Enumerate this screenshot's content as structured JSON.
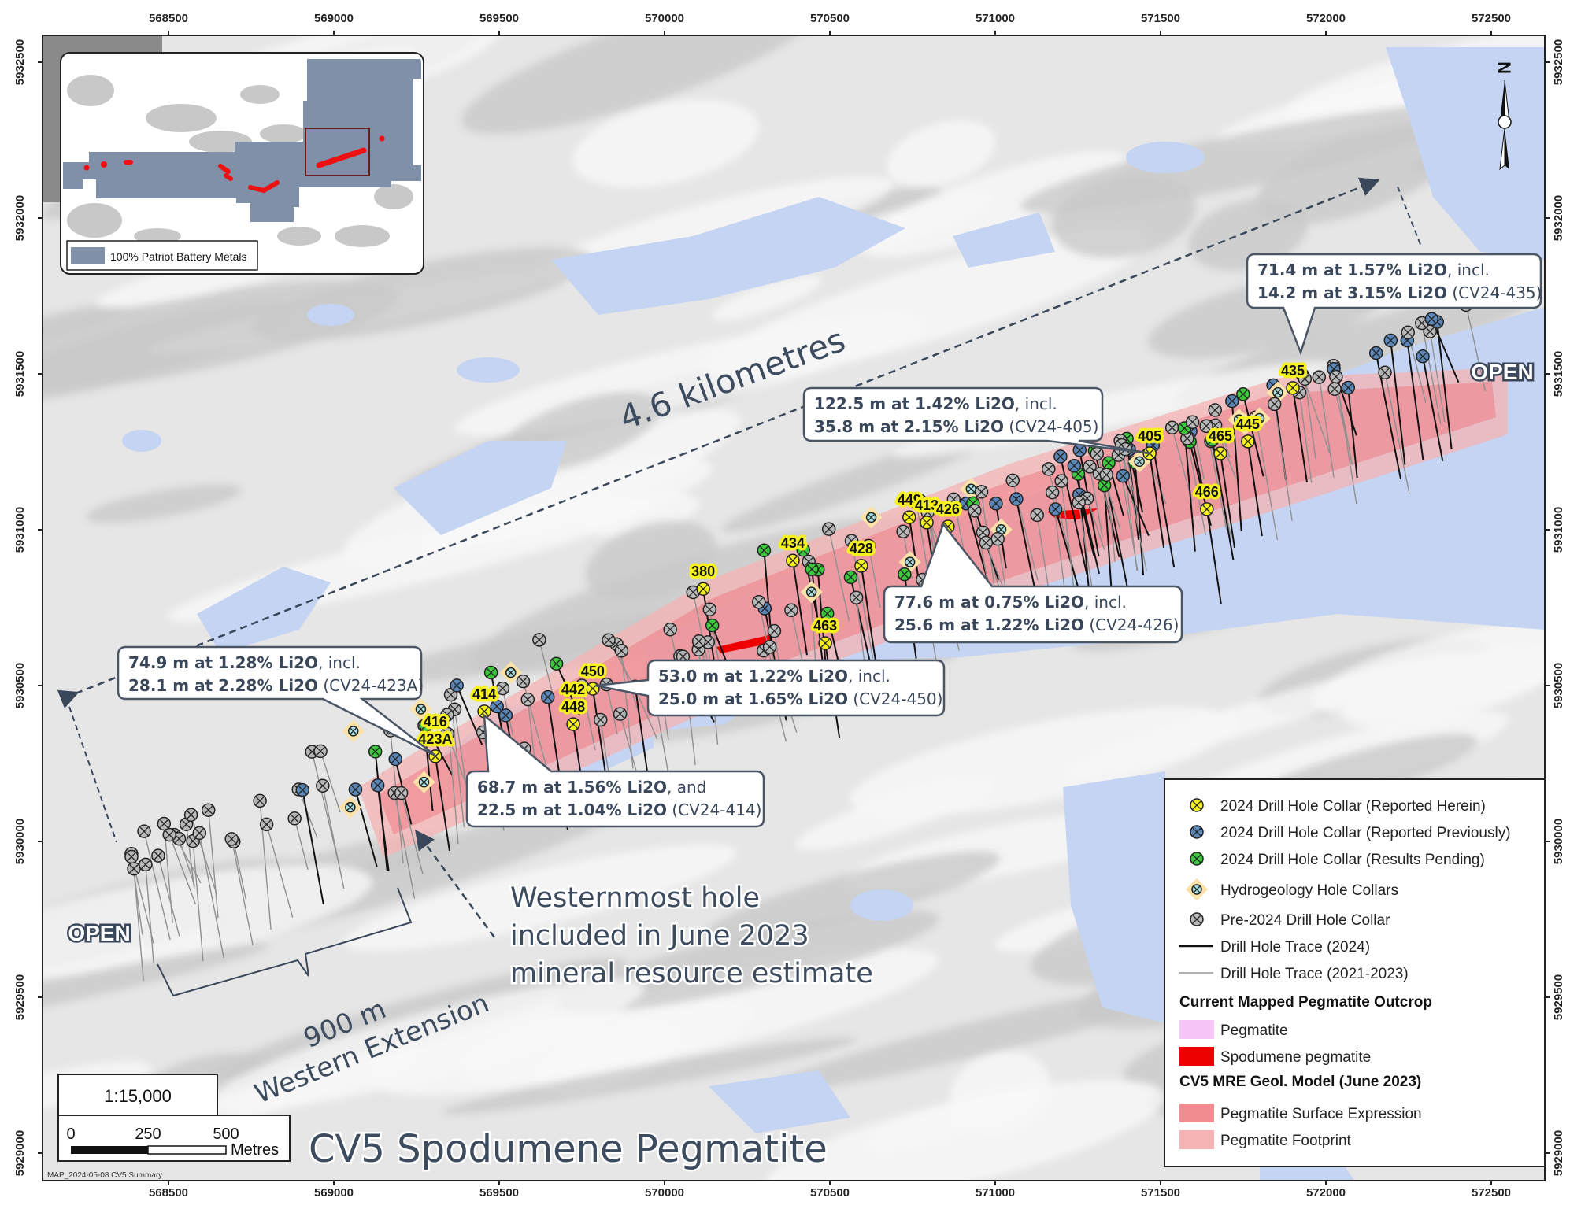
{
  "map": {
    "title": "CV5 Spodumene Pegmatite",
    "distance_label": "4.6 kilometres",
    "open_labels": [
      "OPEN",
      "OPEN"
    ],
    "western_extension": {
      "line1": "900 m",
      "line2": "Western Extension"
    },
    "westernmost_note": [
      "Westernmost hole",
      "included in June 2023",
      "mineral resource estimate"
    ],
    "map_id": "MAP_2024-05-08 CV5 Summary",
    "colors": {
      "lake": "#c4d4f2",
      "terrain": "#e6e6e6",
      "pegmatite_footprint": "#f3a9ad",
      "pegmatite_surface": "#ee8088",
      "spodumene": "#ff0000",
      "callout_text": "#3a475a"
    }
  },
  "axes": {
    "easting": [
      "568500",
      "569000",
      "569500",
      "570000",
      "570500",
      "571000",
      "571500",
      "572000",
      "572500"
    ],
    "northing": [
      "5932500",
      "5932000",
      "5931500",
      "5931000",
      "5930500",
      "5930000",
      "5929500",
      "5929000"
    ]
  },
  "scale": {
    "ratio": "1:15,000",
    "ticks": [
      "0",
      "250",
      "500"
    ],
    "unit": "Metres"
  },
  "inset": {
    "legend_label": "100% Patriot Battery Metals",
    "property_color": "#8090a8"
  },
  "callouts": [
    {
      "lines": [
        {
          "bold": "71.4 m at 1.57% Li2O",
          "rest": ", incl."
        },
        {
          "bold": "14.2 m at 3.15% Li2O",
          "rest": " (CV24-435)"
        }
      ]
    },
    {
      "lines": [
        {
          "bold": "122.5 m at 1.42% Li2O",
          "rest": ", incl."
        },
        {
          "bold": "35.8 m at 2.15% Li2O",
          "rest": " (CV24-405)"
        }
      ]
    },
    {
      "lines": [
        {
          "bold": "77.6 m at 0.75% Li2O",
          "rest": ", incl."
        },
        {
          "bold": "25.6 m at 1.22% Li2O",
          "rest": " (CV24-426)"
        }
      ]
    },
    {
      "lines": [
        {
          "bold": "53.0 m at 1.22% Li2O",
          "rest": ", incl."
        },
        {
          "bold": "25.0 m at 1.65% Li2O",
          "rest": " (CV24-450)"
        }
      ]
    },
    {
      "lines": [
        {
          "bold": "74.9 m at 1.28% Li2O",
          "rest": ", incl."
        },
        {
          "bold": "28.1 m at 2.28% Li2O",
          "rest": " (CV24-423A)"
        }
      ]
    },
    {
      "lines": [
        {
          "bold": "68.7 m at 1.56% Li2O",
          "rest": ", and"
        },
        {
          "bold": "22.5 m at 1.04% Li2O",
          "rest": " (CV24-414)"
        }
      ]
    }
  ],
  "reported_holes": [
    {
      "labels": [
        "435"
      ],
      "easting": 571900,
      "northing": 5931455
    },
    {
      "labels": [
        "405"
      ],
      "easting": 571467,
      "northing": 5931245
    },
    {
      "labels": [
        "465"
      ],
      "easting": 571681,
      "northing": 5931245
    },
    {
      "labels": [
        "445"
      ],
      "easting": 571764,
      "northing": 5931283
    },
    {
      "labels": [
        "466"
      ],
      "easting": 571640,
      "northing": 5931066
    },
    {
      "labels": [
        "449"
      ],
      "easting": 570740,
      "northing": 5931040
    },
    {
      "labels": [
        "413"
      ],
      "easting": 570793,
      "northing": 5931023
    },
    {
      "labels": [
        "426"
      ],
      "easting": 570857,
      "northing": 5931010
    },
    {
      "labels": [
        "434"
      ],
      "easting": 570388,
      "northing": 5930901
    },
    {
      "labels": [
        "428"
      ],
      "easting": 570595,
      "northing": 5930884
    },
    {
      "labels": [
        "380"
      ],
      "easting": 570117,
      "northing": 5930810
    },
    {
      "labels": [
        "463"
      ],
      "easting": 570486,
      "northing": 5930636
    },
    {
      "labels": [
        "450"
      ],
      "easting": 569783,
      "northing": 5930490
    },
    {
      "labels": [
        "442",
        "448"
      ],
      "easting": 569724,
      "northing": 5930376
    },
    {
      "labels": [
        "414"
      ],
      "easting": 569455,
      "northing": 5930417
    },
    {
      "labels": [
        "416",
        "423A"
      ],
      "easting": 569307,
      "northing": 5930273
    }
  ],
  "legend": {
    "items": [
      {
        "symbol": "collar-yellow",
        "label": "2024 Drill Hole Collar (Reported Herein)",
        "color": "#f5f01e"
      },
      {
        "symbol": "collar-blue",
        "label": "2024 Drill Hole Collar (Reported Previously)",
        "color": "#5a86b8"
      },
      {
        "symbol": "collar-green",
        "label": "2024 Drill Hole Collar (Results Pending)",
        "color": "#3cc83c"
      },
      {
        "symbol": "collar-hydro",
        "label": "Hydrogeology Hole Collars",
        "color": "#a8e0e0"
      },
      {
        "symbol": "collar-gray",
        "label": "Pre-2024 Drill Hole Collar",
        "color": "#b8b8b8"
      },
      {
        "symbol": "line-black",
        "label": "Drill Hole Trace (2024)",
        "color": "#111111"
      },
      {
        "symbol": "line-gray",
        "label": "Drill Hole Trace (2021-2023)",
        "color": "#999999"
      }
    ],
    "heading1": "Current Mapped Pegmatite Outcrop",
    "outcrop": [
      {
        "label": "Pegmatite",
        "color": "#f7c4f7"
      },
      {
        "label": "Spodumene pegmatite",
        "color": "#ee0000"
      }
    ],
    "heading2": "CV5 MRE Geol. Model (June 2023)",
    "model": [
      {
        "label": "Pegmatite Surface Expression",
        "color": "#ef8d91"
      },
      {
        "label": "Pegmatite Footprint",
        "color": "#f6b3b3"
      }
    ]
  }
}
